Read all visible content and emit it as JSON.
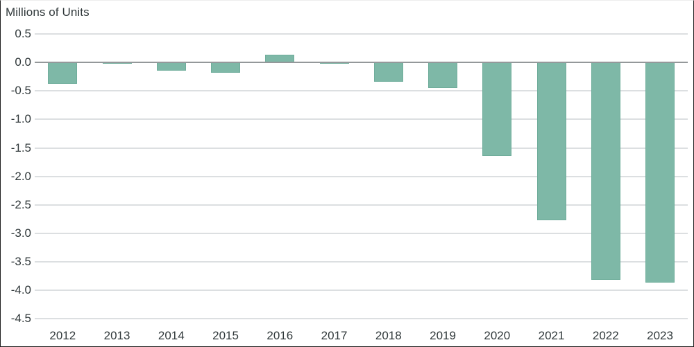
{
  "chart_data": {
    "type": "bar",
    "title": "Millions of Units",
    "categories": [
      "2012",
      "2013",
      "2014",
      "2015",
      "2016",
      "2017",
      "2018",
      "2019",
      "2020",
      "2021",
      "2022",
      "2023"
    ],
    "values": [
      -0.38,
      -0.01,
      -0.15,
      -0.18,
      0.14,
      -0.01,
      -0.34,
      -0.45,
      -1.64,
      -2.77,
      -3.82,
      -3.86
    ],
    "xlabel": "",
    "ylabel": "Millions of Units",
    "ylim": [
      -4.5,
      0.5
    ],
    "y_tick_labels": [
      "0.5",
      "0.0",
      "-0.5",
      "-1.0",
      "-1.5",
      "-2.0",
      "-2.5",
      "-3.0",
      "-3.5",
      "-4.0",
      "-4.5"
    ],
    "y_tick_values": [
      0.5,
      0.0,
      -0.5,
      -1.0,
      -1.5,
      -2.0,
      -2.5,
      -3.0,
      -3.5,
      -4.0,
      -4.5
    ],
    "grid": true,
    "legend_position": "none"
  },
  "colors": {
    "bar_fill": "#7eb8a7",
    "bar_border": "#6fad9b",
    "gridline": "#dcdfe1",
    "zero_line": "#94989a",
    "text": "#31393b",
    "background": "#ffffff",
    "frame_edge": "#1c1c1c"
  }
}
